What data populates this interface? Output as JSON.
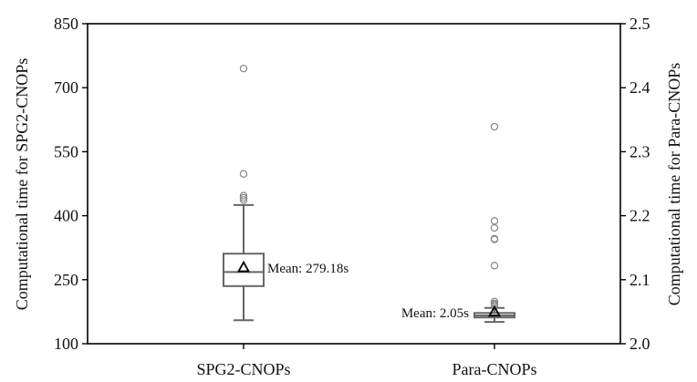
{
  "chart_data": {
    "type": "box",
    "categories": [
      "SPG2-CNOPs",
      "Para-CNOPs"
    ],
    "left_axis": {
      "label": "Computational time for SPG2-CNOPs",
      "ylim": [
        100,
        850
      ],
      "ticks": [
        100,
        250,
        400,
        550,
        700,
        850
      ],
      "tick_labels": [
        "100",
        "250",
        "400",
        "550",
        "700",
        "850"
      ]
    },
    "right_axis": {
      "label": "Computational time for Para-CNOPs",
      "ylim": [
        2.0,
        2.5
      ],
      "ticks": [
        2.0,
        2.1,
        2.2,
        2.3,
        2.4,
        2.5
      ],
      "tick_labels": [
        "2.0",
        "2.1",
        "2.2",
        "2.3",
        "2.4",
        "2.5"
      ]
    },
    "series": [
      {
        "category": "SPG2-CNOPs",
        "axis": "left",
        "whisker_low": 155,
        "q1": 235,
        "median": 268,
        "q3": 311,
        "whisker_high": 425,
        "mean": 279.18,
        "mean_label": "Mean: 279.18s",
        "outliers": [
          745,
          498,
          447,
          442,
          437
        ]
      },
      {
        "category": "Para-CNOPs",
        "axis": "right",
        "whisker_low": 2.034,
        "q1": 2.041,
        "median": 2.044,
        "q3": 2.048,
        "whisker_high": 2.056,
        "mean": 2.05,
        "mean_label": "Mean: 2.05s",
        "outliers": [
          2.339,
          2.192,
          2.181,
          2.164,
          2.163,
          2.122,
          2.066,
          2.063,
          2.061,
          2.059
        ]
      }
    ],
    "colors": {
      "box": "#666666",
      "outlier": "#888888",
      "mean_marker": "#000000",
      "axis": "#000000"
    }
  }
}
